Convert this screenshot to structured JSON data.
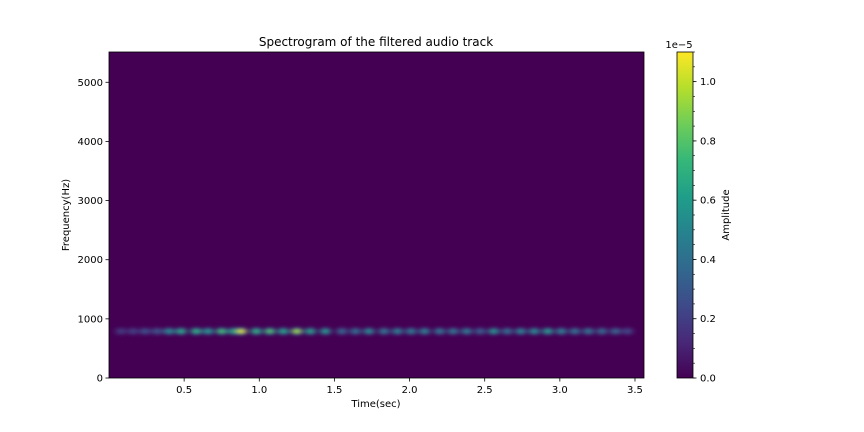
{
  "chart_data": {
    "type": "heatmap",
    "title": "Spectrogram of the filtered audio track",
    "xlabel": "Time(sec)",
    "ylabel": "Frequency(Hz)",
    "xlim": [
      0.0,
      3.56
    ],
    "ylim": [
      0,
      5512
    ],
    "xticks": [
      0.5,
      1.0,
      1.5,
      2.0,
      2.5,
      3.0,
      3.5
    ],
    "xtick_labels": [
      "0.5",
      "1.0",
      "1.5",
      "2.0",
      "2.5",
      "3.0",
      "3.5"
    ],
    "yticks": [
      0,
      1000,
      2000,
      3000,
      4000,
      5000
    ],
    "ytick_labels": [
      "0",
      "1000",
      "2000",
      "3000",
      "4000",
      "5000"
    ],
    "band_frequency_hz": 790,
    "band_time_range": [
      0.08,
      3.45
    ],
    "background_value": 0.0,
    "peaks": [
      {
        "t": 0.08,
        "a": 0.2
      },
      {
        "t": 0.16,
        "a": 0.22
      },
      {
        "t": 0.24,
        "a": 0.28
      },
      {
        "t": 0.32,
        "a": 0.3
      },
      {
        "t": 0.4,
        "a": 0.55
      },
      {
        "t": 0.48,
        "a": 0.68
      },
      {
        "t": 0.58,
        "a": 0.72
      },
      {
        "t": 0.66,
        "a": 0.6
      },
      {
        "t": 0.75,
        "a": 0.78
      },
      {
        "t": 0.83,
        "a": 0.7
      },
      {
        "t": 0.88,
        "a": 1.05
      },
      {
        "t": 0.98,
        "a": 0.72
      },
      {
        "t": 1.07,
        "a": 0.8
      },
      {
        "t": 1.16,
        "a": 0.66
      },
      {
        "t": 1.25,
        "a": 0.95
      },
      {
        "t": 1.34,
        "a": 0.64
      },
      {
        "t": 1.44,
        "a": 0.6
      },
      {
        "t": 1.55,
        "a": 0.38
      },
      {
        "t": 1.64,
        "a": 0.42
      },
      {
        "t": 1.73,
        "a": 0.55
      },
      {
        "t": 1.83,
        "a": 0.45
      },
      {
        "t": 1.92,
        "a": 0.5
      },
      {
        "t": 2.01,
        "a": 0.48
      },
      {
        "t": 2.1,
        "a": 0.5
      },
      {
        "t": 2.2,
        "a": 0.46
      },
      {
        "t": 2.29,
        "a": 0.45
      },
      {
        "t": 2.38,
        "a": 0.48
      },
      {
        "t": 2.47,
        "a": 0.35
      },
      {
        "t": 2.56,
        "a": 0.58
      },
      {
        "t": 2.65,
        "a": 0.42
      },
      {
        "t": 2.74,
        "a": 0.52
      },
      {
        "t": 2.83,
        "a": 0.55
      },
      {
        "t": 2.92,
        "a": 0.62
      },
      {
        "t": 3.01,
        "a": 0.5
      },
      {
        "t": 3.1,
        "a": 0.44
      },
      {
        "t": 3.19,
        "a": 0.45
      },
      {
        "t": 3.28,
        "a": 0.4
      },
      {
        "t": 3.37,
        "a": 0.38
      },
      {
        "t": 3.45,
        "a": 0.25
      }
    ],
    "colorbar": {
      "label": "Amplitude",
      "offset_text": "1e−5",
      "range": [
        0.0,
        1.1
      ],
      "ticks": [
        0.0,
        0.2,
        0.4,
        0.6,
        0.8,
        1.0
      ],
      "tick_labels": [
        "0.0",
        "0.2",
        "0.4",
        "0.6",
        "0.8",
        "1.0"
      ],
      "colormap": "viridis"
    }
  }
}
